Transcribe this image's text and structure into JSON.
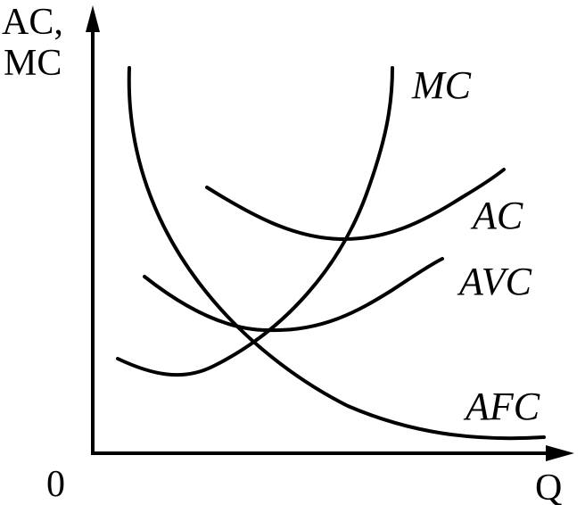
{
  "axes": {
    "y_label_line1": "AC,",
    "y_label_line2": "MC",
    "x_label": "Q",
    "origin_label": "0"
  },
  "curves": {
    "mc": "MC",
    "ac": "AC",
    "avc": "AVC",
    "afc": "AFC"
  },
  "colors": {
    "ink": "#000000",
    "background": "#ffffff"
  }
}
